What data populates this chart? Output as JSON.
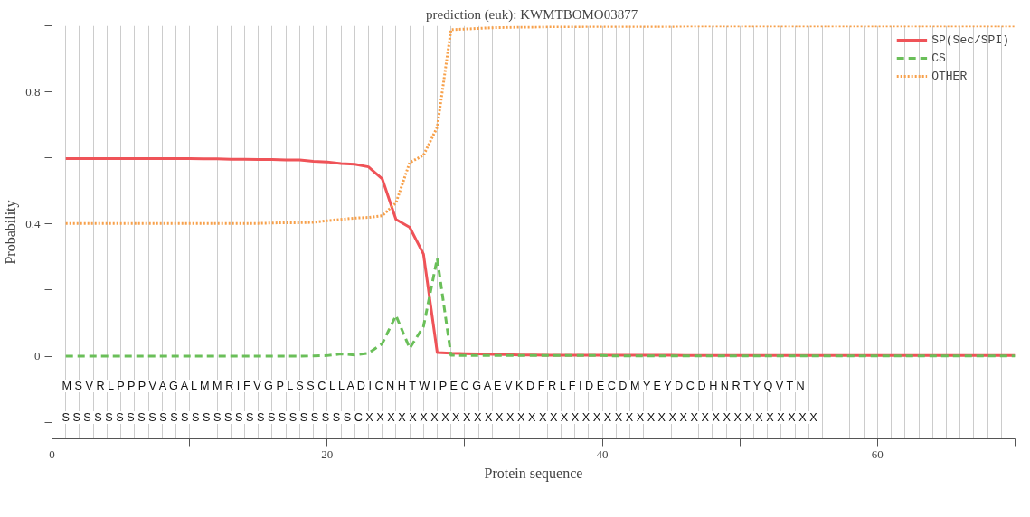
{
  "chart_data": {
    "type": "line",
    "title": "prediction (euk):  KWMTBOMO03877",
    "xlabel": "Protein sequence",
    "ylabel": "Probability",
    "x": [
      1,
      2,
      3,
      4,
      5,
      6,
      7,
      8,
      9,
      10,
      11,
      12,
      13,
      14,
      15,
      16,
      17,
      18,
      19,
      20,
      21,
      22,
      23,
      24,
      25,
      26,
      27,
      28,
      29,
      30,
      31,
      32,
      33,
      34,
      35,
      36,
      37,
      38,
      39,
      40,
      41,
      42,
      43,
      44,
      45,
      46,
      47,
      48,
      49,
      50,
      51,
      52,
      53,
      54,
      55,
      56,
      57,
      58,
      59,
      60,
      61,
      62,
      63,
      64,
      65,
      66,
      67,
      68,
      69,
      70
    ],
    "series": [
      {
        "name": "SP(Sec/SPI)",
        "color": "#ef5358",
        "line_style": "solid",
        "values": [
          0.598,
          0.598,
          0.598,
          0.598,
          0.598,
          0.598,
          0.598,
          0.598,
          0.598,
          0.598,
          0.597,
          0.597,
          0.596,
          0.596,
          0.595,
          0.595,
          0.594,
          0.594,
          0.59,
          0.588,
          0.583,
          0.581,
          0.573,
          0.537,
          0.414,
          0.39,
          0.309,
          0.011,
          0.009,
          0.008,
          0.007,
          0.006,
          0.005,
          0.004,
          0.004,
          0.003,
          0.003,
          0.003,
          0.003,
          0.003,
          0.003,
          0.003,
          0.003,
          0.003,
          0.003,
          0.002,
          0.002,
          0.002,
          0.002,
          0.002,
          0.002,
          0.002,
          0.002,
          0.002,
          0.002,
          0.002,
          0.002,
          0.002,
          0.002,
          0.002,
          0.002,
          0.002,
          0.002,
          0.002,
          0.002,
          0.002,
          0.002,
          0.002,
          0.002,
          0.002
        ]
      },
      {
        "name": "CS",
        "color": "#6abf59",
        "line_style": "dashed",
        "values": [
          0,
          0,
          0,
          0,
          0,
          0,
          0,
          0,
          0,
          0,
          0,
          0,
          0,
          0,
          0,
          0,
          0,
          0,
          0.001,
          0.002,
          0.007,
          0.004,
          0.009,
          0.038,
          0.123,
          0.024,
          0.09,
          0.296,
          0.003,
          0.002,
          0.002,
          0.002,
          0.002,
          0.002,
          0.002,
          0.002,
          0.002,
          0.002,
          0.002,
          0.002,
          0.001,
          0.001,
          0.001,
          0.001,
          0.001,
          0.001,
          0.001,
          0.001,
          0.001,
          0.001,
          0.001,
          0.001,
          0.001,
          0.001,
          0.001,
          0.001,
          0.001,
          0.001,
          0.001,
          0.001,
          0.001,
          0.001,
          0.001,
          0.001,
          0.001,
          0.001,
          0.001,
          0.001,
          0.001,
          0.001
        ]
      },
      {
        "name": "OTHER",
        "color": "#f7a04a",
        "line_style": "dotted",
        "values": [
          0.402,
          0.402,
          0.402,
          0.402,
          0.402,
          0.402,
          0.402,
          0.402,
          0.402,
          0.402,
          0.402,
          0.402,
          0.402,
          0.402,
          0.402,
          0.403,
          0.404,
          0.404,
          0.405,
          0.41,
          0.414,
          0.418,
          0.42,
          0.425,
          0.464,
          0.586,
          0.608,
          0.693,
          0.988,
          0.99,
          0.992,
          0.994,
          0.995,
          0.996,
          0.996,
          0.997,
          0.997,
          0.997,
          0.998,
          0.998,
          0.998,
          0.998,
          0.998,
          0.998,
          0.998,
          0.999,
          0.999,
          0.999,
          0.999,
          0.999,
          0.999,
          0.999,
          0.999,
          0.999,
          0.999,
          0.999,
          0.999,
          0.999,
          0.999,
          0.999,
          0.999,
          0.999,
          0.999,
          0.999,
          0.999,
          0.999,
          0.999,
          0.999,
          0.999,
          0.999
        ]
      }
    ],
    "annotations": [
      "M S V R L P P P V A G A L M M R I F V G P L S S C L L A D I C N H T W I P E C G A E V K D F R L F I D E C D M Y E Y D C D H N R T Y Q V T N",
      "S S S S S S S S S S S S S S S S S S S S S S S S S S S C X X X X X X X X X X X X X X X X X X X X X X X X X X X X X X X X X X X X X X X X X X"
    ],
    "xlim": [
      0,
      70
    ],
    "xticks": [
      0,
      {
        "value": 10,
        "label": null
      },
      20,
      {
        "value": 30,
        "label": null
      },
      40,
      {
        "value": 50,
        "label": null
      },
      60,
      {
        "value": 70,
        "label": null
      }
    ],
    "ylim": [
      -0.25,
      1.0
    ],
    "yticks": [
      {
        "value": -0.2,
        "label": null
      },
      0,
      {
        "value": 0.2,
        "label": null
      },
      0.4,
      {
        "value": 0.6,
        "label": null
      },
      0.8,
      {
        "value": 1.0,
        "label": null
      }
    ],
    "grid": "x",
    "legend": "top right",
    "marker": "none"
  }
}
